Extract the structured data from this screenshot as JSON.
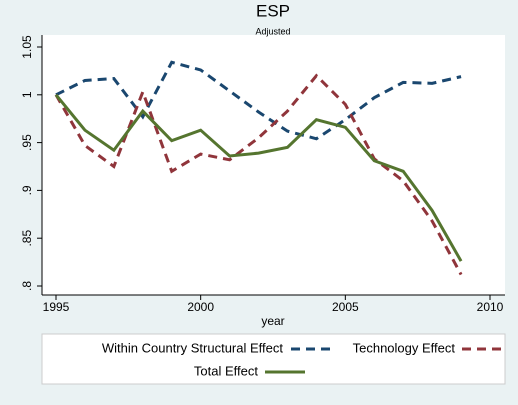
{
  "chart_data": {
    "type": "line",
    "title": "ESP",
    "subtitle": "Adjusted",
    "x_label": "year",
    "x": [
      1995,
      1996,
      1997,
      1998,
      1999,
      2000,
      2001,
      2002,
      2003,
      2004,
      2005,
      2006,
      2007,
      2008,
      2009
    ],
    "series": [
      {
        "name": "Within Country Structural Effect",
        "color": "#1a476f",
        "dash": "dash",
        "values": [
          1.0,
          1.015,
          1.017,
          0.977,
          1.034,
          1.026,
          1.004,
          0.982,
          0.962,
          0.954,
          0.974,
          0.997,
          1.013,
          1.012,
          1.019
        ]
      },
      {
        "name": "Technology Effect",
        "color": "#90353b",
        "dash": "dash",
        "values": [
          1.0,
          0.947,
          0.925,
          1.003,
          0.92,
          0.938,
          0.932,
          0.955,
          0.983,
          1.02,
          0.99,
          0.933,
          0.91,
          0.868,
          0.812
        ]
      },
      {
        "name": "Total Effect",
        "color": "#55752f",
        "dash": "solid",
        "values": [
          1.0,
          0.963,
          0.942,
          0.983,
          0.952,
          0.963,
          0.936,
          0.939,
          0.945,
          0.974,
          0.966,
          0.931,
          0.92,
          0.879,
          0.826
        ]
      }
    ],
    "xlim": [
      1995,
      2010
    ],
    "xticks": [
      1995,
      2000,
      2005,
      2010
    ],
    "ylim": [
      0.8,
      1.05
    ],
    "yticks": [
      {
        "value": 0.8,
        "label": ".8"
      },
      {
        "value": 0.85,
        "label": ".85"
      },
      {
        "value": 0.9,
        "label": ".9"
      },
      {
        "value": 0.95,
        "label": ".95"
      },
      1,
      1.05
    ]
  }
}
